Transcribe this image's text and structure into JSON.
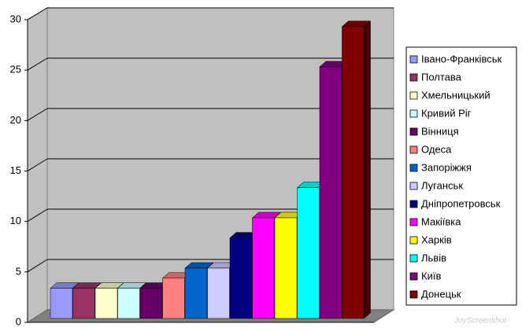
{
  "chart_data": {
    "type": "bar3d",
    "categories": [
      "Івано-Франківськ",
      "Полтава",
      "Хмельницький",
      "Кривий Ріг",
      "Вінниця",
      "Одеса",
      "Запоріжжя",
      "Луганськ",
      "Дніпропетровськ",
      "Макіївка",
      "Харків",
      "Львів",
      "Київ",
      "Донецьк"
    ],
    "values": [
      3,
      3,
      3,
      3,
      3,
      4,
      5,
      5,
      8,
      10,
      10,
      13,
      25,
      29
    ],
    "colors": [
      "#9999ff",
      "#993366",
      "#ffffcc",
      "#ccffff",
      "#660066",
      "#ff8080",
      "#0066cc",
      "#ccccff",
      "#000080",
      "#ff00ff",
      "#ffff00",
      "#00ffff",
      "#800080",
      "#800000"
    ],
    "ylim": [
      0,
      30
    ],
    "yticks": [
      0,
      5,
      10,
      15,
      20,
      25,
      30
    ],
    "grid": true,
    "legend": "right"
  },
  "watermark": "JoyScreenshot"
}
